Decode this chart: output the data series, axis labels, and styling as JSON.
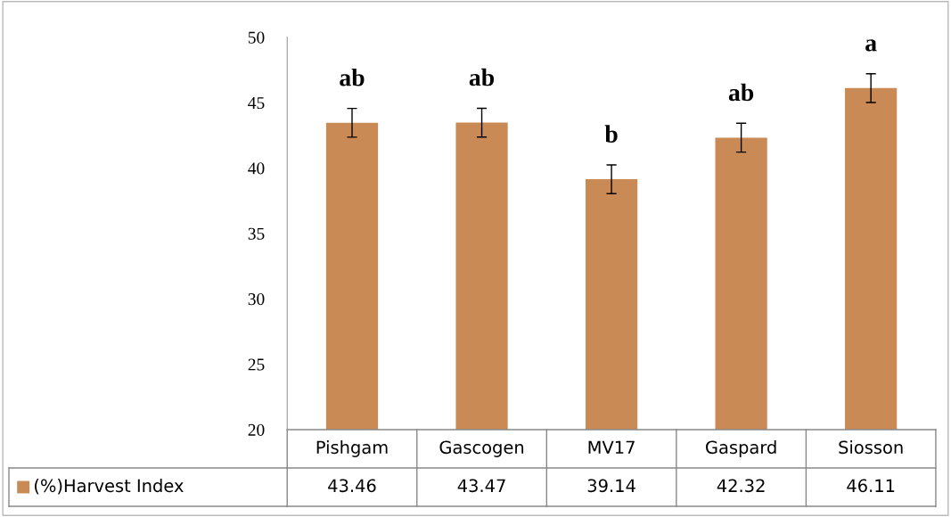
{
  "chart_data": {
    "type": "bar",
    "categories": [
      "Pishgam",
      "Gascogen",
      "MV17",
      "Gaspard",
      "Siosson"
    ],
    "series": [
      {
        "name": "(%)Harvest Index",
        "color": "#c98a55",
        "values": [
          43.46,
          43.47,
          39.14,
          42.32,
          46.11
        ],
        "errors": [
          1.1,
          1.1,
          1.1,
          1.1,
          1.1
        ]
      }
    ],
    "data_labels": true,
    "ylim": [
      20,
      50
    ],
    "yticks": [
      20,
      25,
      30,
      35,
      40,
      45,
      50
    ],
    "grid": false,
    "legend": "bottom",
    "annotations": [
      "ab",
      "ab",
      "b",
      "ab",
      "a"
    ]
  }
}
